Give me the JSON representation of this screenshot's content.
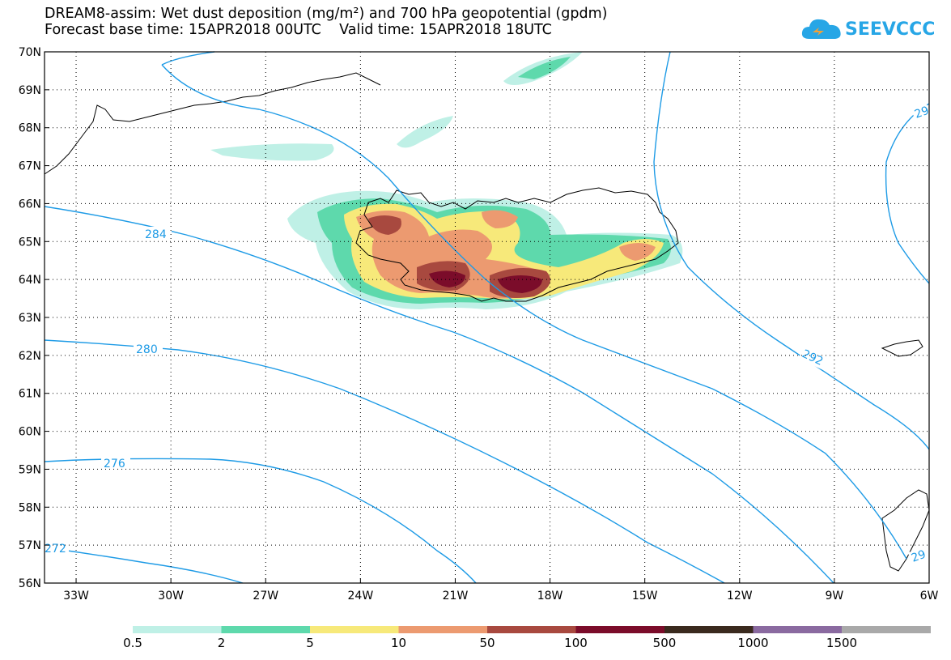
{
  "title": {
    "line1": "DREAM8-assim: Wet dust deposition (mg/m²) and 700 hPa geopotential (gpdm)",
    "line2": "Forecast base time: 15APR2018 00UTC    Valid time: 15APR2018 18UTC"
  },
  "logo": {
    "text": "SEEVCCC",
    "icon": "cloud-icon",
    "color": "#27a6e6"
  },
  "map": {
    "lon_range": [
      -34,
      -6
    ],
    "lat_range": [
      56,
      70
    ],
    "lat_labels": [
      "70N",
      "69N",
      "68N",
      "67N",
      "66N",
      "65N",
      "64N",
      "63N",
      "62N",
      "61N",
      "60N",
      "59N",
      "58N",
      "57N",
      "56N"
    ],
    "lon_labels": [
      "33W",
      "30W",
      "27W",
      "24W",
      "21W",
      "18W",
      "15W",
      "12W",
      "9W",
      "6W"
    ],
    "grid": true,
    "geopotential_contours": [
      {
        "label": "272",
        "color": "#1e9be6"
      },
      {
        "label": "276",
        "color": "#1e9be6"
      },
      {
        "label": "280",
        "color": "#1e9be6"
      },
      {
        "label": "284",
        "color": "#1e9be6"
      },
      {
        "label": "292",
        "color": "#1e9be6"
      },
      {
        "label": "29",
        "color": "#1e9be6"
      },
      {
        "label": "29",
        "color": "#1e9be6"
      }
    ]
  },
  "colorbar": {
    "levels": [
      "0.5",
      "2",
      "5",
      "10",
      "50",
      "100",
      "500",
      "1000",
      "1500"
    ],
    "colors": [
      "#bff0e6",
      "#5ed9ac",
      "#f7e97a",
      "#ec9a70",
      "#a8493f",
      "#7b0c2a",
      "#3a2a1e",
      "#8a6aa0",
      "#a9a9a9"
    ]
  }
}
